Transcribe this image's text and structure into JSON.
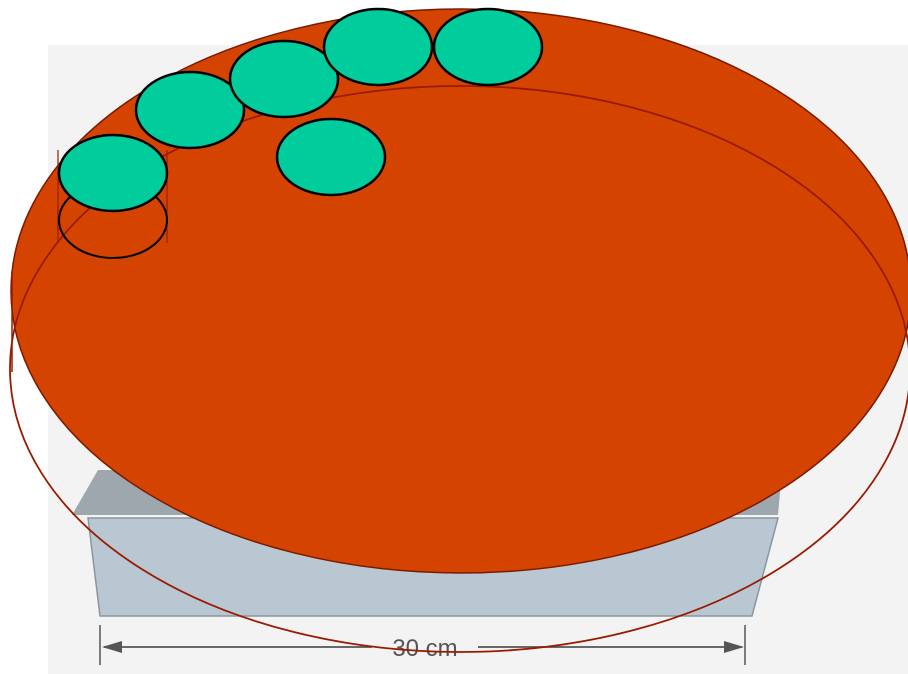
{
  "label": "30 cm"
}
